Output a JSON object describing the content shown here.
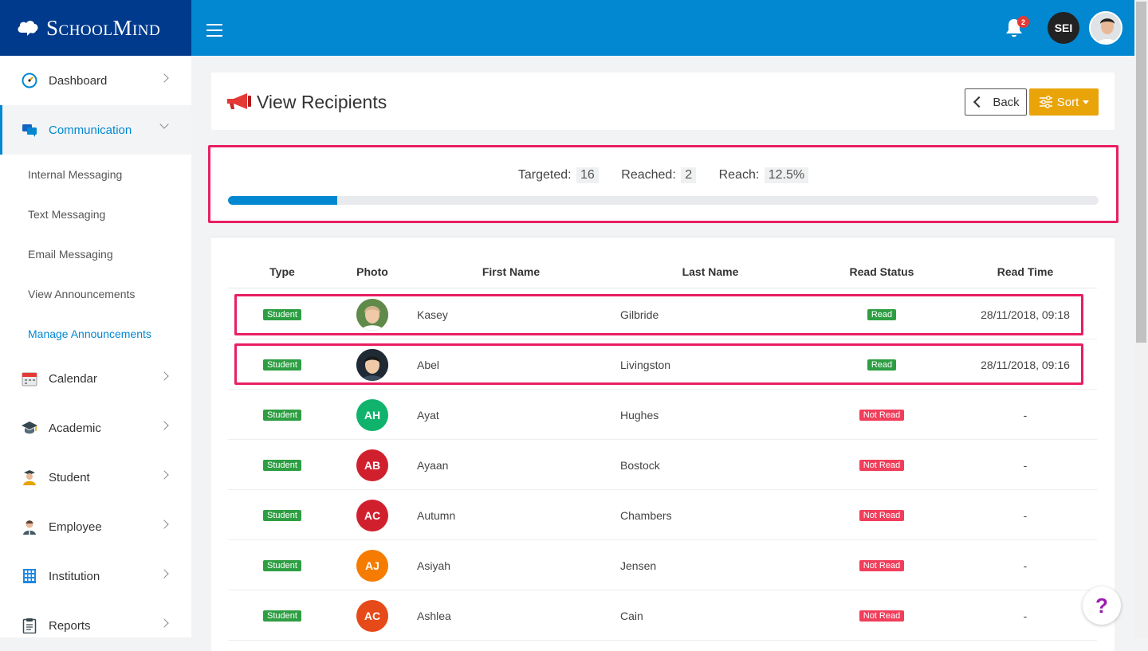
{
  "brand": {
    "name": "SchoolMind"
  },
  "topbar": {
    "notification_count": "2",
    "user_initials": "SEI"
  },
  "sidebar": {
    "items": [
      {
        "label": "Dashboard",
        "icon": "dashboard-gauge-icon"
      },
      {
        "label": "Communication",
        "icon": "chat-bubbles-icon"
      },
      {
        "label": "Calendar",
        "icon": "calendar-icon"
      },
      {
        "label": "Academic",
        "icon": "graduation-cap-icon"
      },
      {
        "label": "Student",
        "icon": "student-icon"
      },
      {
        "label": "Employee",
        "icon": "employee-icon"
      },
      {
        "label": "Institution",
        "icon": "building-icon"
      },
      {
        "label": "Reports",
        "icon": "clipboard-icon"
      }
    ],
    "communication_sub": [
      {
        "label": "Internal Messaging"
      },
      {
        "label": "Text Messaging"
      },
      {
        "label": "Email Messaging"
      },
      {
        "label": "View Announcements"
      },
      {
        "label": "Manage Announcements"
      }
    ]
  },
  "page": {
    "title": "View Recipients",
    "back_label": "Back",
    "sort_label": "Sort"
  },
  "stats": {
    "targeted_label": "Targeted:",
    "targeted_value": "16",
    "reached_label": "Reached:",
    "reached_value": "2",
    "reach_label": "Reach:",
    "reach_value": "12.5%",
    "progress_fraction": 0.125
  },
  "table": {
    "headers": [
      "Type",
      "Photo",
      "First Name",
      "Last Name",
      "Read Status",
      "Read Time"
    ],
    "rows": [
      {
        "type": "Student",
        "photo": "photo",
        "initials": "",
        "first": "Kasey",
        "last": "Gilbride",
        "status": "Read",
        "time": "28/11/2018, 09:18"
      },
      {
        "type": "Student",
        "photo": "photo",
        "initials": "",
        "first": "Abel",
        "last": "Livingston",
        "status": "Read",
        "time": "28/11/2018, 09:16"
      },
      {
        "type": "Student",
        "photo": "initials",
        "initials": "AH",
        "first": "Ayat",
        "last": "Hughes",
        "status": "Not Read",
        "time": "-"
      },
      {
        "type": "Student",
        "photo": "initials",
        "initials": "AB",
        "first": "Ayaan",
        "last": "Bostock",
        "status": "Not Read",
        "time": "-"
      },
      {
        "type": "Student",
        "photo": "initials",
        "initials": "AC",
        "first": "Autumn",
        "last": "Chambers",
        "status": "Not Read",
        "time": "-"
      },
      {
        "type": "Student",
        "photo": "initials",
        "initials": "AJ",
        "first": "Asiyah",
        "last": "Jensen",
        "status": "Not Read",
        "time": "-"
      },
      {
        "type": "Student",
        "photo": "initials",
        "initials": "AC",
        "first": "Ashlea",
        "last": "Cain",
        "status": "Not Read",
        "time": "-"
      }
    ]
  },
  "colors": {
    "primary": "#0288d1",
    "brand_dark": "#003a8c",
    "accent_sort": "#e9a40a",
    "highlight": "#e91e63",
    "read": "#2e9e43",
    "not_read": "#f03e5b",
    "avatar_colors": [
      "#0fb36b",
      "#d0202e",
      "#d0202e",
      "#f57c00",
      "#e64a19"
    ]
  },
  "help": {
    "label": "?"
  }
}
